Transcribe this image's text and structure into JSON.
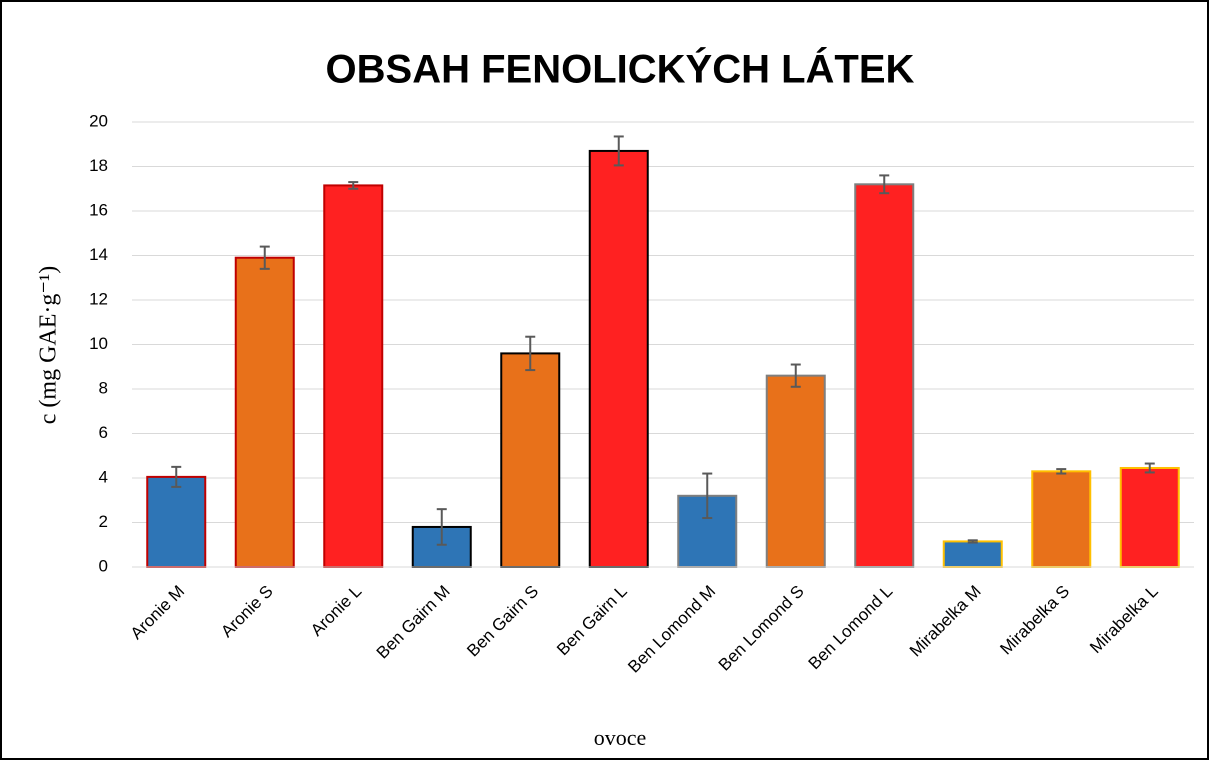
{
  "chart_data": {
    "type": "bar",
    "title": "OBSAH FENOLICKÝCH LÁTEK",
    "x_label": "ovoce",
    "y_label": "c  (mg GAE·g⁻¹)",
    "categories": [
      "Aronie M",
      "Aronie S",
      "Aronie L",
      "Ben Gairn M",
      "Ben Gairn S",
      "Ben Gairn L",
      "Ben Lomond M",
      "Ben Lomond S",
      "Ben Lomond L",
      "Mirabelka M",
      "Mirabelka S",
      "Mirabelka L"
    ],
    "values": [
      4.05,
      13.9,
      17.15,
      1.8,
      9.6,
      18.7,
      3.2,
      8.6,
      17.2,
      1.15,
      4.3,
      4.45
    ],
    "errors": [
      0.45,
      0.5,
      0.15,
      0.8,
      0.75,
      0.65,
      1.0,
      0.5,
      0.4,
      0.05,
      0.1,
      0.2
    ],
    "colors": [
      "#2e75b6",
      "#e8711a",
      "#ff2121",
      "#2e75b6",
      "#e8711a",
      "#ff2121",
      "#2e75b6",
      "#e8711a",
      "#ff2121",
      "#2e75b6",
      "#e8711a",
      "#ff2121"
    ],
    "edge_colors": [
      "#c00000",
      "#c00000",
      "#c00000",
      "#000000",
      "#000000",
      "#000000",
      "#7f7f7f",
      "#7f7f7f",
      "#7f7f7f",
      "#ffc000",
      "#ffc000",
      "#ffc000"
    ],
    "ylim": [
      0,
      20
    ],
    "yticks": [
      0,
      2,
      4,
      6,
      8,
      10,
      12,
      14,
      16,
      18,
      20
    ],
    "grid": true
  }
}
